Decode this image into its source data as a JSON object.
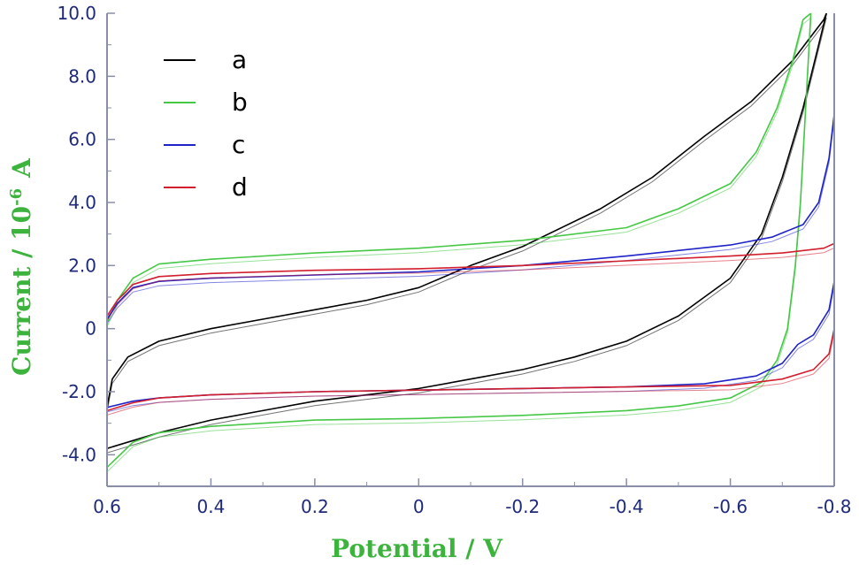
{
  "chart_data": {
    "type": "line",
    "xlabel": "Potential / V",
    "ylabel_main": "Current / 10",
    "ylabel_sup": "-6",
    "ylabel_unit": "A",
    "x_reversed": true,
    "xlim": [
      0.6,
      -0.8
    ],
    "ylim": [
      -5.0,
      10.0
    ],
    "x_ticks": [
      {
        "value": 0.6,
        "label": "0.6"
      },
      {
        "value": 0.4,
        "label": "0.4"
      },
      {
        "value": 0.2,
        "label": "0.2"
      },
      {
        "value": 0.0,
        "label": "0"
      },
      {
        "value": -0.2,
        "label": "-0.2"
      },
      {
        "value": -0.4,
        "label": "-0.4"
      },
      {
        "value": -0.6,
        "label": "-0.6"
      },
      {
        "value": -0.8,
        "label": "-0.8"
      }
    ],
    "y_ticks": [
      {
        "value": 10.0,
        "label": "10.0"
      },
      {
        "value": 8.0,
        "label": "8.0"
      },
      {
        "value": 6.0,
        "label": "6.0"
      },
      {
        "value": 4.0,
        "label": "4.0"
      },
      {
        "value": 2.0,
        "label": "2.0"
      },
      {
        "value": 0.0,
        "label": "0"
      },
      {
        "value": -2.0,
        "label": "-2.0"
      },
      {
        "value": -4.0,
        "label": "-4.0"
      }
    ],
    "grid": false,
    "legend_position": "top-left",
    "series": [
      {
        "name": "a",
        "color": "#000000",
        "points": [
          [
            0.6,
            -3.8
          ],
          [
            0.5,
            -3.3
          ],
          [
            0.4,
            -2.9
          ],
          [
            0.3,
            -2.6
          ],
          [
            0.2,
            -2.3
          ],
          [
            0.1,
            -2.1
          ],
          [
            0.0,
            -1.9
          ],
          [
            -0.1,
            -1.6
          ],
          [
            -0.2,
            -1.3
          ],
          [
            -0.3,
            -0.9
          ],
          [
            -0.4,
            -0.4
          ],
          [
            -0.5,
            0.4
          ],
          [
            -0.6,
            1.6
          ],
          [
            -0.66,
            3.0
          ],
          [
            -0.7,
            4.8
          ],
          [
            -0.74,
            7.0
          ],
          [
            -0.77,
            9.0
          ],
          [
            -0.785,
            10.0
          ],
          [
            -0.78,
            9.8
          ],
          [
            -0.72,
            8.5
          ],
          [
            -0.64,
            7.2
          ],
          [
            -0.55,
            6.1
          ],
          [
            -0.45,
            4.8
          ],
          [
            -0.35,
            3.8
          ],
          [
            -0.2,
            2.6
          ],
          [
            -0.1,
            2.0
          ],
          [
            0.0,
            1.3
          ],
          [
            0.1,
            0.9
          ],
          [
            0.2,
            0.6
          ],
          [
            0.3,
            0.3
          ],
          [
            0.4,
            0.0
          ],
          [
            0.5,
            -0.4
          ],
          [
            0.56,
            -0.9
          ],
          [
            0.59,
            -1.6
          ],
          [
            0.6,
            -2.5
          ]
        ]
      },
      {
        "name": "b",
        "color": "#46c846",
        "points": [
          [
            0.6,
            -4.4
          ],
          [
            0.55,
            -3.6
          ],
          [
            0.5,
            -3.3
          ],
          [
            0.4,
            -3.1
          ],
          [
            0.3,
            -3.0
          ],
          [
            0.2,
            -2.9
          ],
          [
            0.0,
            -2.85
          ],
          [
            -0.2,
            -2.75
          ],
          [
            -0.4,
            -2.6
          ],
          [
            -0.5,
            -2.45
          ],
          [
            -0.6,
            -2.2
          ],
          [
            -0.66,
            -1.7
          ],
          [
            -0.69,
            -1.0
          ],
          [
            -0.71,
            0.0
          ],
          [
            -0.725,
            2.0
          ],
          [
            -0.735,
            4.0
          ],
          [
            -0.745,
            7.0
          ],
          [
            -0.755,
            10.0
          ],
          [
            -0.74,
            9.8
          ],
          [
            -0.72,
            8.5
          ],
          [
            -0.69,
            7.0
          ],
          [
            -0.65,
            5.6
          ],
          [
            -0.6,
            4.6
          ],
          [
            -0.5,
            3.8
          ],
          [
            -0.4,
            3.2
          ],
          [
            -0.2,
            2.8
          ],
          [
            0.0,
            2.55
          ],
          [
            0.2,
            2.4
          ],
          [
            0.4,
            2.2
          ],
          [
            0.5,
            2.05
          ],
          [
            0.55,
            1.6
          ],
          [
            0.58,
            0.9
          ],
          [
            0.6,
            0.2
          ]
        ]
      },
      {
        "name": "c",
        "color": "#1e23c8",
        "points": [
          [
            0.6,
            -2.5
          ],
          [
            0.55,
            -2.3
          ],
          [
            0.5,
            -2.2
          ],
          [
            0.4,
            -2.1
          ],
          [
            0.2,
            -2.0
          ],
          [
            0.0,
            -1.95
          ],
          [
            -0.2,
            -1.9
          ],
          [
            -0.4,
            -1.85
          ],
          [
            -0.55,
            -1.75
          ],
          [
            -0.65,
            -1.5
          ],
          [
            -0.7,
            -1.1
          ],
          [
            -0.73,
            -0.5
          ],
          [
            -0.76,
            -0.2
          ],
          [
            -0.79,
            0.6
          ],
          [
            -0.8,
            1.5
          ],
          [
            -0.8,
            6.8
          ],
          [
            -0.79,
            5.4
          ],
          [
            -0.77,
            4.0
          ],
          [
            -0.74,
            3.3
          ],
          [
            -0.68,
            2.9
          ],
          [
            -0.6,
            2.65
          ],
          [
            -0.4,
            2.3
          ],
          [
            -0.2,
            2.0
          ],
          [
            0.0,
            1.8
          ],
          [
            0.2,
            1.7
          ],
          [
            0.4,
            1.6
          ],
          [
            0.5,
            1.5
          ],
          [
            0.55,
            1.3
          ],
          [
            0.58,
            0.8
          ],
          [
            0.6,
            0.3
          ]
        ]
      },
      {
        "name": "d",
        "color": "#d21e2d",
        "points": [
          [
            0.6,
            -2.6
          ],
          [
            0.55,
            -2.35
          ],
          [
            0.5,
            -2.2
          ],
          [
            0.4,
            -2.1
          ],
          [
            0.2,
            -2.0
          ],
          [
            0.0,
            -1.95
          ],
          [
            -0.2,
            -1.9
          ],
          [
            -0.4,
            -1.85
          ],
          [
            -0.6,
            -1.8
          ],
          [
            -0.7,
            -1.6
          ],
          [
            -0.76,
            -1.3
          ],
          [
            -0.79,
            -0.8
          ],
          [
            -0.8,
            0.0
          ],
          [
            -0.8,
            2.7
          ],
          [
            -0.78,
            2.55
          ],
          [
            -0.7,
            2.4
          ],
          [
            -0.6,
            2.3
          ],
          [
            -0.4,
            2.15
          ],
          [
            -0.2,
            2.0
          ],
          [
            0.0,
            1.9
          ],
          [
            0.2,
            1.85
          ],
          [
            0.4,
            1.75
          ],
          [
            0.5,
            1.65
          ],
          [
            0.55,
            1.4
          ],
          [
            0.58,
            0.9
          ],
          [
            0.6,
            0.4
          ]
        ]
      }
    ]
  }
}
